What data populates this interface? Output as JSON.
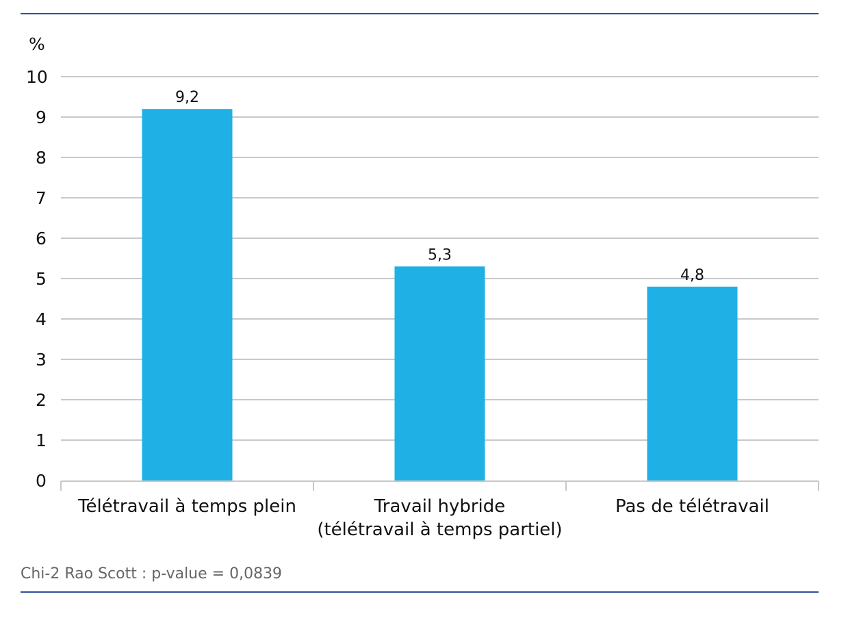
{
  "chart_data": {
    "type": "bar",
    "ylabel": "%",
    "ylim": [
      0,
      10
    ],
    "yticks": [
      0,
      1,
      2,
      3,
      4,
      5,
      6,
      7,
      8,
      9,
      10
    ],
    "categories": [
      [
        "Télétravail à temps plein"
      ],
      [
        "Travail hybride",
        "(télétravail à temps partiel)"
      ],
      [
        "Pas de télétravail"
      ]
    ],
    "values": [
      9.2,
      5.3,
      4.8
    ],
    "value_labels": [
      "9,2",
      "5,3",
      "4,8"
    ],
    "grid": true,
    "bar_color": "#1fb1e6"
  },
  "footnote": "Chi-2 Rao Scott : p-value = 0,0839",
  "rule_color": "#2f4f9a"
}
